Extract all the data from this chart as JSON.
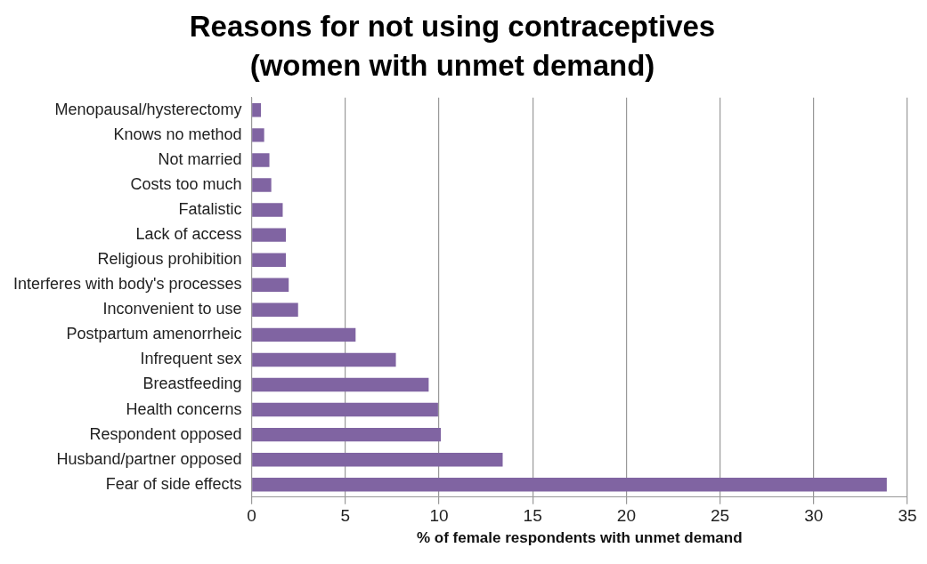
{
  "chart_data": {
    "type": "bar",
    "orientation": "horizontal",
    "title": "Reasons for not using contraceptives (women with unmet demand)",
    "xlabel": "% of female respondents with unmet demand",
    "categories": [
      "Menopausal/hysterectomy",
      "Knows no method",
      "Not married",
      "Costs too much",
      "Fatalistic",
      "Lack of access",
      "Religious prohibition",
      "Interferes with body's processes",
      "Inconvenient to use",
      "Postpartum amenorrheic",
      "Infrequent sex",
      "Breastfeeding",
      "Health concerns",
      "Respondent opposed",
      "Husband/partner opposed",
      "Fear of side effects"
    ],
    "values": [
      0.5,
      0.67,
      0.95,
      1.05,
      1.66,
      1.83,
      1.83,
      1.98,
      2.48,
      5.55,
      7.7,
      9.45,
      9.95,
      10.1,
      13.4,
      33.9
    ],
    "color": "#8064a2",
    "xlim": [
      0,
      35
    ],
    "xticks": [
      0,
      5,
      10,
      15,
      20,
      25,
      30,
      35
    ],
    "grid": "x",
    "legend": false
  }
}
